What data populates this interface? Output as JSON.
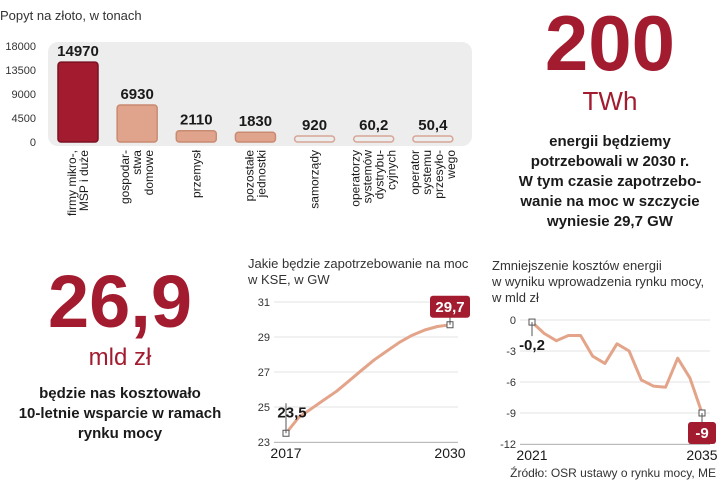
{
  "colors": {
    "accent": "#a31b2f",
    "bar_light": "#e0a48c",
    "panel_bg": "#ededed",
    "line": "#e3a48a"
  },
  "headline_200": {
    "value": "200",
    "unit": "TWh",
    "caption_lines": [
      "energii będziemy",
      "potrzebowali w 2030 r.",
      "W tym czasie zapotrzebo-",
      "wanie na moc w szczycie",
      "wyniesie 29,7 GW"
    ]
  },
  "headline_269": {
    "value": "26,9",
    "unit": "mld zł",
    "caption_lines": [
      "będzie nas kosztowało",
      "10-letnie wsparcie w ramach",
      "rynku mocy"
    ]
  },
  "source": "Źródło: OSR ustawy o rynku mocy, ME",
  "chart_data": [
    {
      "type": "bar",
      "title": "Popyt na złoto, w tonach",
      "ylim": [
        0,
        18000
      ],
      "yticks": [
        "18000",
        "13500",
        "9000",
        "4500",
        "0"
      ],
      "series": [
        {
          "name": "Popyt",
          "values": [
            14970,
            6930,
            2110,
            1830,
            920,
            60.2,
            50.4
          ],
          "labels": [
            "14970",
            "6930",
            "2110",
            "1830",
            "920",
            "60,2",
            "50,4"
          ]
        }
      ],
      "categories": [
        [
          "firmy mikro-,",
          "MŚP i duże"
        ],
        [
          "gospodar-",
          "stwa",
          "domowe"
        ],
        [
          "przemysł"
        ],
        [
          "pozostałe",
          "jednostki"
        ],
        [
          "samorządy"
        ],
        [
          "operatorzy",
          "systemów",
          "dystrybu-",
          "cyjnych"
        ],
        [
          "operator",
          "systemu",
          "przesyło-",
          "wego"
        ]
      ]
    },
    {
      "type": "line",
      "title_lines": [
        "Jakie będzie zapotrzebowanie na moc",
        "w KSE, w GW"
      ],
      "x": [
        2017,
        2018,
        2019,
        2020,
        2021,
        2022,
        2023,
        2024,
        2025,
        2026,
        2027,
        2028,
        2029,
        2030
      ],
      "values": [
        23.5,
        24.4,
        24.9,
        25.4,
        25.9,
        26.5,
        27.1,
        27.7,
        28.2,
        28.7,
        29.1,
        29.4,
        29.6,
        29.7
      ],
      "ylim": [
        23,
        31
      ],
      "yticks": [
        "31",
        "29",
        "27",
        "25",
        "23"
      ],
      "xticks": [
        "2017",
        "2030"
      ],
      "start_label": "23,5",
      "end_label": "29,7"
    },
    {
      "type": "line",
      "title_lines": [
        "Zmniejszenie kosztów energii",
        "w wyniku wprowadzenia rynku mocy,",
        "w mld zł"
      ],
      "x": [
        2021,
        2022,
        2023,
        2024,
        2025,
        2026,
        2027,
        2028,
        2029,
        2030,
        2031,
        2032,
        2033,
        2034,
        2035
      ],
      "values": [
        -0.2,
        -1.3,
        -2.0,
        -1.5,
        -1.5,
        -3.5,
        -4.2,
        -2.3,
        -3.0,
        -5.8,
        -6.4,
        -6.5,
        -3.7,
        -5.6,
        -9.0
      ],
      "ylim": [
        -12,
        0
      ],
      "yticks": [
        "0",
        "-3",
        "-6",
        "-9",
        "-12"
      ],
      "xticks": [
        "2021",
        "2035"
      ],
      "start_label": "-0,2",
      "end_label": "-9"
    }
  ]
}
